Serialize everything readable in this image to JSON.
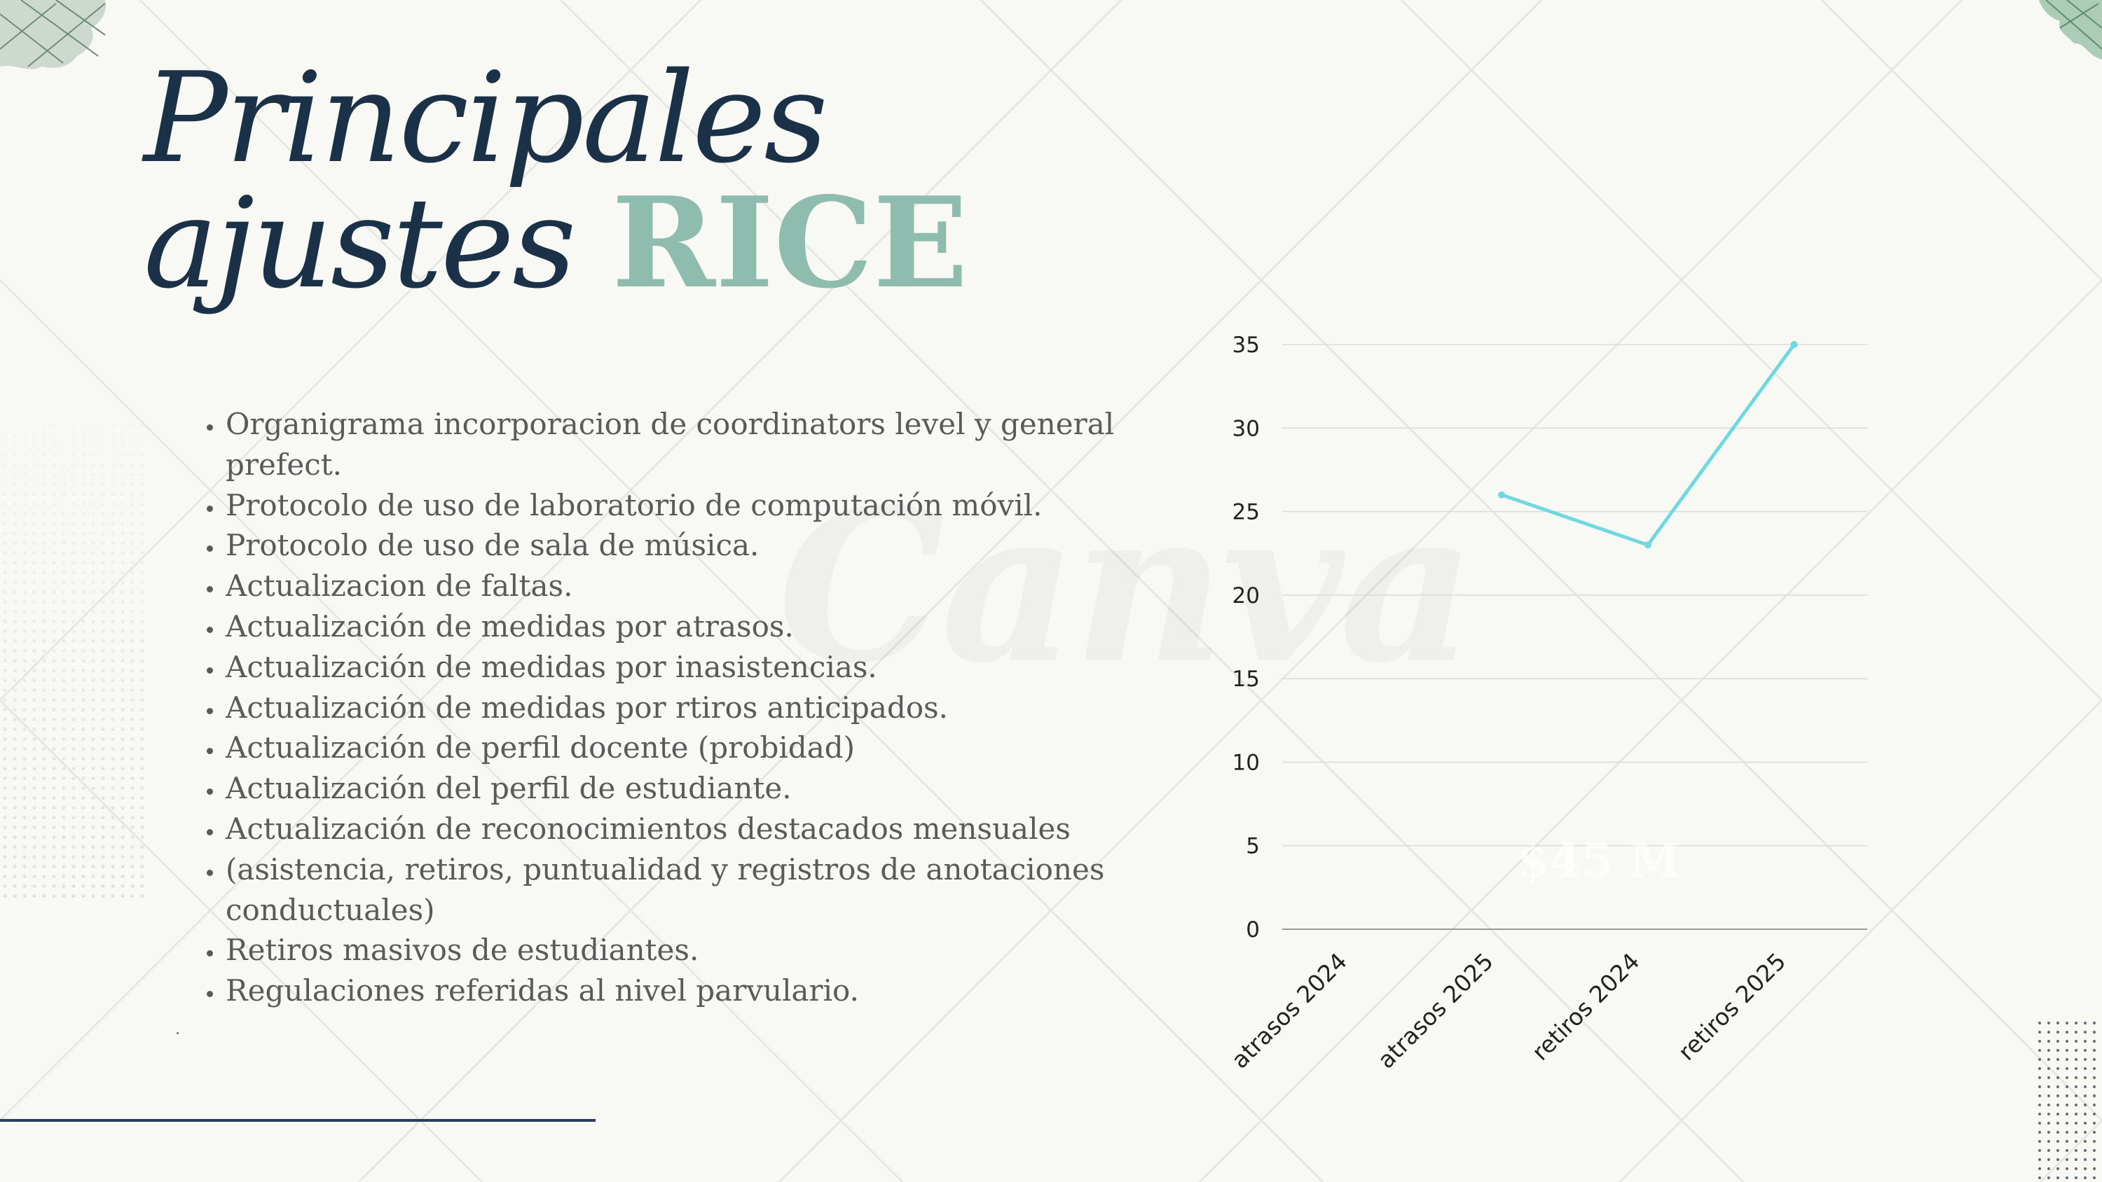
{
  "title": {
    "line1": "Principales",
    "line2_prefix": "ajustes",
    "line2_accent": "RICE"
  },
  "bullets": [
    "Organigrama incorporacion de coordinators level y general prefect.",
    "Protocolo de uso de laboratorio de computación móvil.",
    "Protocolo de uso de sala de música.",
    "Actualizacion de faltas.",
    "Actualización de medidas por atrasos.",
    "Actualización de medidas por inasistencias.",
    "Actualización de medidas por rtiros anticipados.",
    "Actualización de perfil docente (probidad)",
    "Actualización del perfil de estudiante.",
    "Actualización de reconocimientos destacados mensuales",
    "(asistencia, retiros, puntualidad y registros de anotaciones conductuales)",
    "Retiros masivos de estudiantes.",
    "Regulaciones referidas al nivel parvulario."
  ],
  "watermark": "Canva",
  "ghost_label": "$45 M",
  "colors": {
    "title": "#1b3148",
    "accent": "#8ebcae",
    "body_text": "#5a5a5a",
    "series_line": "#6fd8e0",
    "grid": "#dcdcdc"
  },
  "chart_data": {
    "type": "line",
    "categories": [
      "atrasos 2024",
      "atrasos 2025",
      "retiros 2024",
      "retiros 2025"
    ],
    "series": [
      {
        "values": [
          null,
          26,
          23,
          35
        ]
      }
    ],
    "yticks": [
      0,
      5,
      10,
      15,
      20,
      25,
      30,
      35
    ],
    "ylim": [
      0,
      35
    ],
    "grid": true,
    "legend": "none"
  }
}
